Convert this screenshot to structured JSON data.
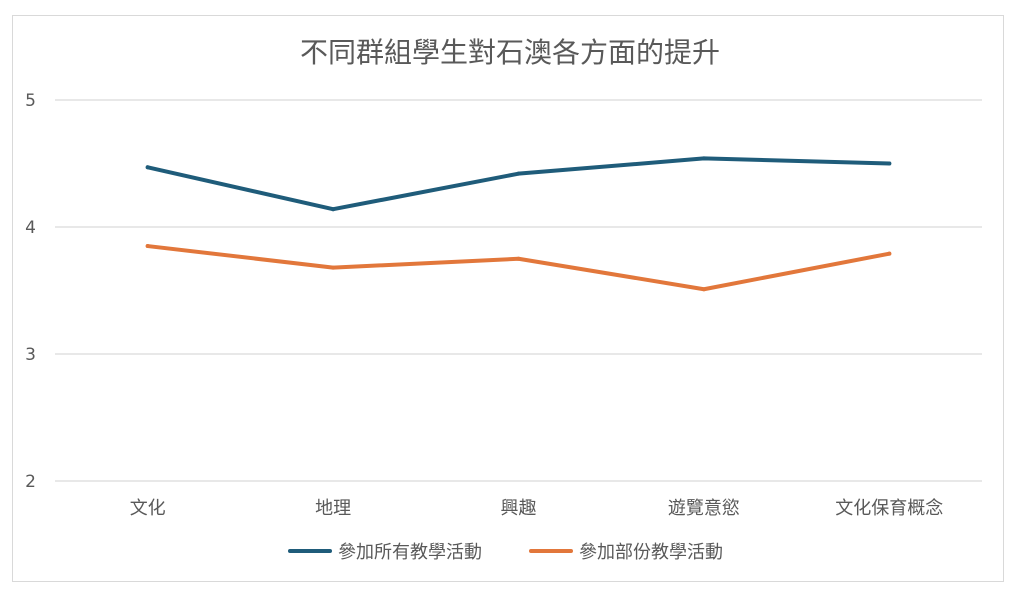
{
  "chart_data": {
    "type": "line",
    "title": "不同群組學生對石澳各方面的提升",
    "xlabel": "",
    "ylabel": "",
    "categories": [
      "文化",
      "地理",
      "興趣",
      "遊覽意慾",
      "文化保育概念"
    ],
    "ylim": [
      2,
      5
    ],
    "yticks": [
      "2",
      "3",
      "4",
      "5"
    ],
    "grid": "horizontal",
    "legend_position": "bottom",
    "series": [
      {
        "name": "參加所有教學活動",
        "color": "#1f5c7a",
        "values": [
          4.47,
          4.14,
          4.42,
          4.54,
          4.5
        ]
      },
      {
        "name": "參加部份教學活動",
        "color": "#e2773b",
        "values": [
          3.85,
          3.68,
          3.75,
          3.51,
          3.79
        ]
      }
    ]
  }
}
